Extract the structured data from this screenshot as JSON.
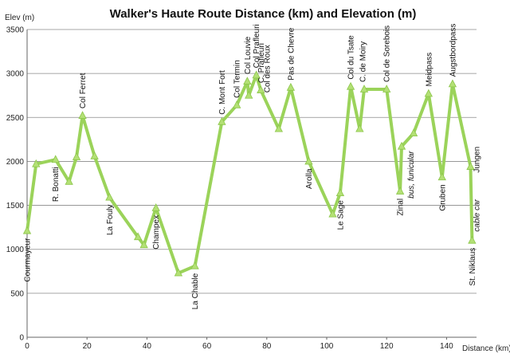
{
  "chart_data": {
    "type": "line",
    "title": "Walker's Haute Route Distance (km) and Elevation (m)",
    "ylabel": "Elev (m)",
    "xlabel": "Distance (km)",
    "xlim": [
      0,
      150
    ],
    "ylim": [
      0,
      3500
    ],
    "xticks": [
      0,
      20,
      40,
      60,
      80,
      100,
      120,
      140
    ],
    "yticks": [
      0,
      500,
      1000,
      1500,
      2000,
      2500,
      3000,
      3500
    ],
    "grid": "horizontal",
    "line_color": "#9bd35a",
    "marker_color": "#b3e075",
    "series": [
      {
        "x": [
          0,
          3,
          9.5,
          14,
          16.5,
          18.5,
          22.5,
          27.5,
          37,
          39,
          43,
          50.5,
          56,
          65,
          70,
          73.5,
          74,
          76.5,
          78,
          84,
          88,
          94,
          102,
          104.5,
          108,
          111,
          112.5,
          120,
          124.5,
          125,
          129,
          134,
          138.5,
          142,
          148,
          148.5
        ],
        "y": [
          1210,
          1970,
          2020,
          1770,
          2050,
          2520,
          2060,
          1590,
          1140,
          1050,
          1470,
          730,
          810,
          2450,
          2640,
          2910,
          2750,
          2980,
          2810,
          2370,
          2840,
          2000,
          1400,
          1640,
          2850,
          2370,
          2820,
          2820,
          1660,
          2170,
          2320,
          2770,
          1820,
          2880,
          1940,
          1100
        ]
      }
    ],
    "annotations": [
      {
        "text": "Courmayeur",
        "x": 0,
        "y": 1210,
        "italic": false
      },
      {
        "text": "R. Bonatti",
        "x": 9.5,
        "y": 2020,
        "italic": false
      },
      {
        "text": "Col Ferret",
        "x": 18.5,
        "y": 2520,
        "italic": false
      },
      {
        "text": "La Fouly",
        "x": 27.5,
        "y": 1590,
        "italic": false
      },
      {
        "text": "Champex",
        "x": 43,
        "y": 1470,
        "italic": false
      },
      {
        "text": "La Chable",
        "x": 56,
        "y": 810,
        "italic": false
      },
      {
        "text": "C. Mont Fort",
        "x": 65,
        "y": 2450,
        "italic": false
      },
      {
        "text": "Col Termin",
        "x": 70,
        "y": 2640,
        "italic": false
      },
      {
        "text": "Col Louvie",
        "x": 73.5,
        "y": 2910,
        "italic": false
      },
      {
        "text": "Col Prafleuri",
        "x": 76.5,
        "y": 2980,
        "italic": false
      },
      {
        "text": "C. Prafleuri",
        "x": 78,
        "y": 2810,
        "italic": false
      },
      {
        "text": "Col des Roux",
        "x": 80,
        "y": 2700,
        "italic": false
      },
      {
        "text": "Pas de Chevre",
        "x": 88,
        "y": 2840,
        "italic": false
      },
      {
        "text": "Arolla",
        "x": 94,
        "y": 2000,
        "italic": false
      },
      {
        "text": "Le Sage",
        "x": 104.5,
        "y": 1640,
        "italic": false
      },
      {
        "text": "Col du Tsate",
        "x": 108,
        "y": 2850,
        "italic": false
      },
      {
        "text": "C. de Moiry",
        "x": 112,
        "y": 2820,
        "italic": false
      },
      {
        "text": "Col de Sorebois",
        "x": 120,
        "y": 2820,
        "italic": false
      },
      {
        "text": "Zinal",
        "x": 124.5,
        "y": 1660,
        "italic": false
      },
      {
        "text": "bus, funicular",
        "x": 128,
        "y": 2200,
        "italic": true
      },
      {
        "text": "Meidpass",
        "x": 134,
        "y": 2770,
        "italic": false
      },
      {
        "text": "Gruben",
        "x": 138.5,
        "y": 1820,
        "italic": false
      },
      {
        "text": "Augstbordpass",
        "x": 142,
        "y": 2880,
        "italic": false
      },
      {
        "text": "Jungen",
        "x": 150,
        "y": 2250,
        "italic": false
      },
      {
        "text": "cable car",
        "x": 150,
        "y": 1650,
        "italic": true
      },
      {
        "text": "St. Niklaus",
        "x": 148.5,
        "y": 1100,
        "italic": false
      }
    ]
  }
}
